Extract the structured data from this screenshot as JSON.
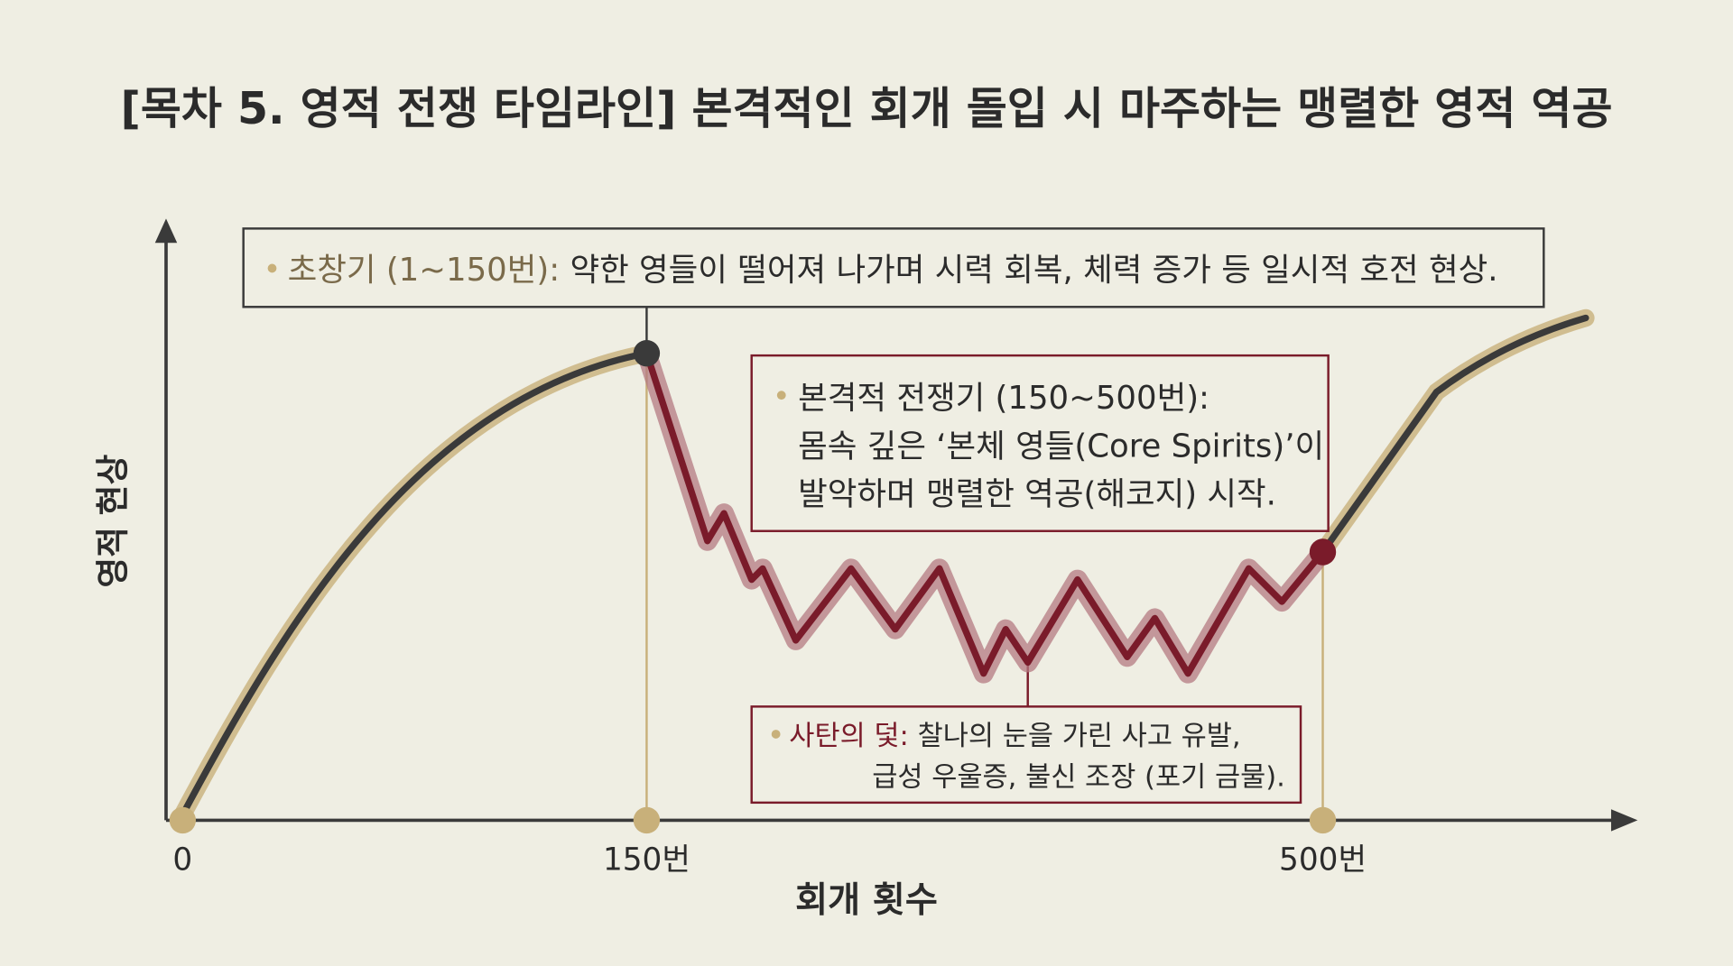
{
  "title": "[목차 5. 영적 전쟁 타임라인] 본격적인 회개 돌입 시 마주하는 맹렬한 영적 역공",
  "axes": {
    "y_label": "영적 현상",
    "x_label": "회개 횟수",
    "x_ticks": [
      "0",
      "150번",
      "500번"
    ]
  },
  "annotations": [
    {
      "label": "초창기 (1~150번):",
      "lines": [
        "약한 영들이 떨어져 나가며 시력 회복, 체력 증가 등 일시적 호전 현상."
      ]
    },
    {
      "label": "본격적 전쟁기 (150~500번):",
      "lines": [
        "몸속 깊은 ‘본체 영들(Core Spirits)’이",
        "발악하며 맹렬한 역공(해코지) 시작."
      ]
    },
    {
      "label": "사탄의 덫:",
      "lines": [
        "찰나의 눈을 가린 사고 유발,",
        "급성 우울증, 불신 조장 (포기 금물)."
      ]
    }
  ]
}
